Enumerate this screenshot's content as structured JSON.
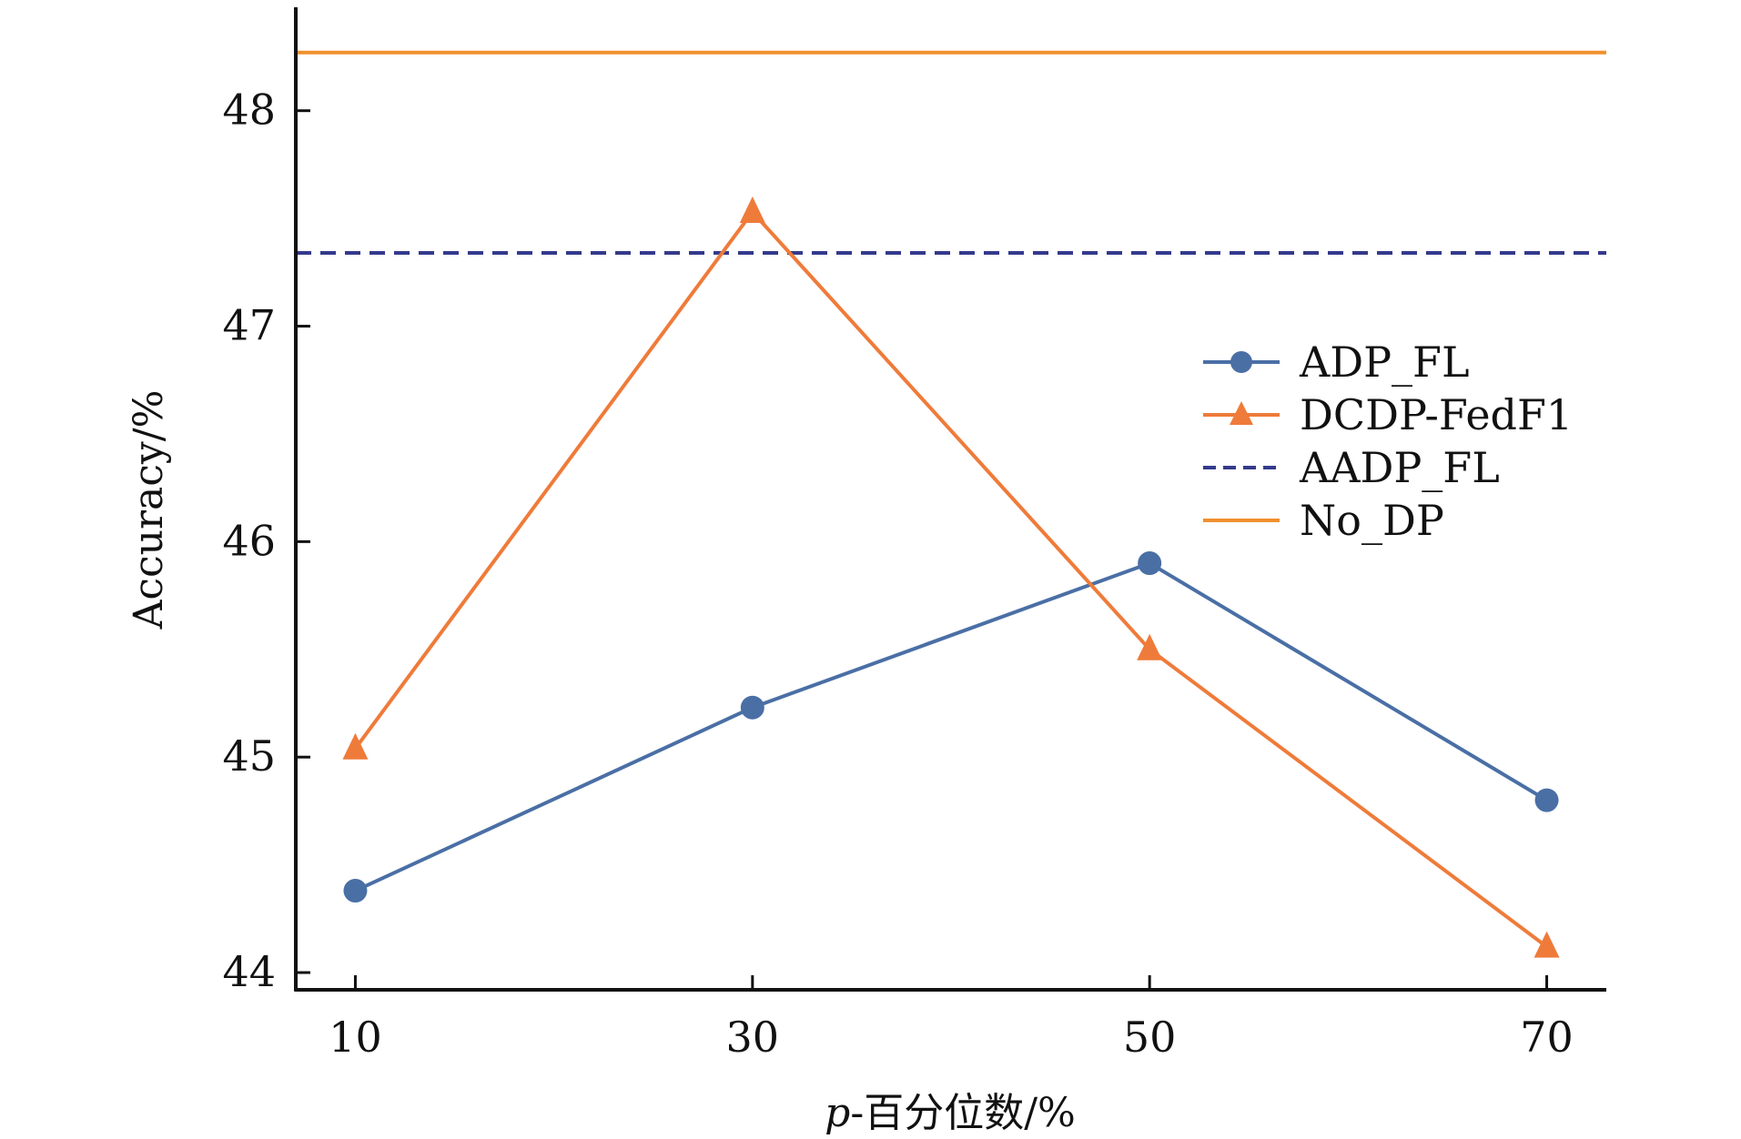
{
  "chart_data": {
    "type": "line",
    "title": "",
    "xlabel": "p-百分位数/%",
    "xlabel_var": "p",
    "xlabel_rest": "-百分位数/%",
    "ylabel": "Accuracy/%",
    "x": [
      10,
      30,
      50,
      70
    ],
    "xlim": [
      7,
      73
    ],
    "ylim": [
      43.92,
      48.48
    ],
    "xticks": [
      10,
      30,
      50,
      70
    ],
    "yticks": [
      44,
      45,
      46,
      47,
      48
    ],
    "grid": false,
    "legend_position": "center-right",
    "series": [
      {
        "name": "ADP_FL",
        "values": [
          44.38,
          45.23,
          45.9,
          44.8
        ],
        "color": "#4a6fa5",
        "marker": "circle",
        "style": "solid"
      },
      {
        "name": "DCDP-FedF1",
        "values": [
          45.04,
          47.53,
          45.5,
          44.12
        ],
        "color": "#ef7b3a",
        "marker": "triangle",
        "style": "solid"
      },
      {
        "name": "AADP_FL",
        "values": [
          47.34,
          47.34,
          47.34,
          47.34
        ],
        "color": "#343a8c",
        "marker": "none",
        "style": "dashed"
      },
      {
        "name": "No_DP",
        "values": [
          48.27,
          48.27,
          48.27,
          48.27
        ],
        "color": "#f0902f",
        "marker": "none",
        "style": "solid"
      }
    ]
  }
}
